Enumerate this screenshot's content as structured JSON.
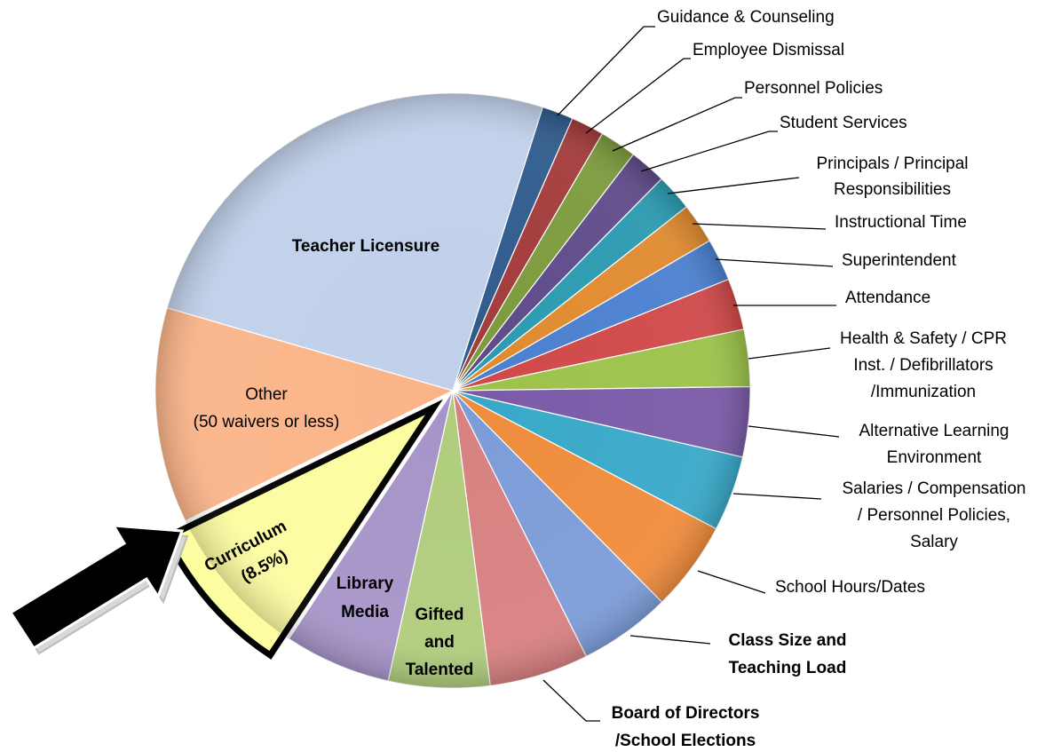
{
  "chart_data": {
    "type": "pie",
    "categories": [
      [
        "Guidance & Counseling"
      ],
      [
        "Employee Dismissal"
      ],
      [
        "Personnel Policies"
      ],
      [
        "Student Services"
      ],
      [
        "Principals / Principal",
        "Responsibilities"
      ],
      [
        "Instructional Time"
      ],
      [
        "Superintendent"
      ],
      [
        "Attendance"
      ],
      [
        "Health & Safety / CPR",
        "Inst. / Defibrillators",
        "/Immunization"
      ],
      [
        "Alternative Learning",
        "Environment"
      ],
      [
        "Salaries / Compensation",
        "/ Personnel Policies,",
        "Salary"
      ],
      [
        "School Hours/Dates"
      ],
      [
        "Class Size and",
        "Teaching Load"
      ],
      [
        "Board of Directors",
        "/School Elections"
      ],
      [
        "Gifted",
        "and",
        "Talented"
      ],
      [
        "Library",
        "Media"
      ],
      [
        "Curriculum"
      ],
      [
        "Other",
        "(50 waivers or less)"
      ],
      [
        "Teacher Licensure"
      ]
    ],
    "values": [
      1.7,
      1.8,
      2,
      2,
      2,
      2.2,
      2.3,
      2.8,
      3.1,
      3.8,
      4.1,
      4.9,
      5,
      5.4,
      5.5,
      5.8,
      8.5,
      11.7,
      25.4
    ],
    "value_labels": [
      null,
      null,
      null,
      null,
      null,
      null,
      null,
      null,
      null,
      null,
      null,
      null,
      null,
      null,
      null,
      null,
      "(8.5%)",
      null,
      null
    ],
    "colors": [
      "#2e5a8c",
      "#a33a3a",
      "#7c9a3c",
      "#5e4a8a",
      "#2a9ab0",
      "#e08a2e",
      "#4a7fd0",
      "#d04848",
      "#9cc24a",
      "#7a5aa8",
      "#38a8c8",
      "#f08c3c",
      "#7c9cd8",
      "#d88080",
      "#b0cc7c",
      "#a694c8",
      "#fcfca0",
      "#fbb488",
      "#c0d0ea"
    ]
  }
}
